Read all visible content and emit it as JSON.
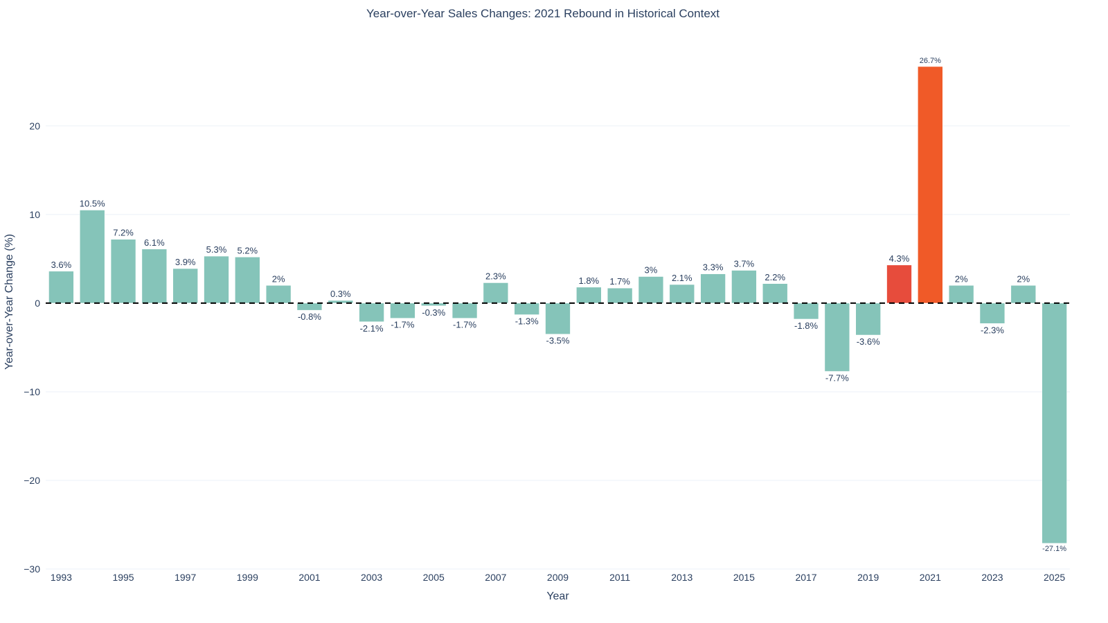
{
  "chart_data": {
    "type": "bar",
    "title": "Year-over-Year Sales Changes: 2021 Rebound in Historical Context",
    "xlabel": "Year",
    "ylabel": "Year-over-Year Change (%)",
    "categories": [
      1993,
      1994,
      1995,
      1996,
      1997,
      1998,
      1999,
      2000,
      2001,
      2002,
      2003,
      2004,
      2005,
      2006,
      2007,
      2008,
      2009,
      2010,
      2011,
      2012,
      2013,
      2014,
      2015,
      2016,
      2017,
      2018,
      2019,
      2020,
      2021,
      2022,
      2023,
      2024,
      2025
    ],
    "values": [
      3.6,
      10.5,
      7.2,
      6.1,
      3.9,
      5.3,
      5.2,
      2,
      -0.8,
      0.3,
      -2.1,
      -1.7,
      -0.3,
      -1.7,
      2.3,
      -1.3,
      -3.5,
      1.8,
      1.7,
      3,
      2.1,
      3.3,
      3.7,
      2.2,
      -1.8,
      -7.7,
      -3.6,
      4.3,
      26.7,
      2,
      -2.3,
      2,
      -27.1
    ],
    "data_labels": [
      "3.6%",
      "10.5%",
      "7.2%",
      "6.1%",
      "3.9%",
      "5.3%",
      "5.2%",
      "2%",
      "-0.8%",
      "0.3%",
      "-2.1%",
      "-1.7%",
      "-0.3%",
      "-1.7%",
      "2.3%",
      "-1.3%",
      "-3.5%",
      "1.8%",
      "1.7%",
      "3%",
      "2.1%",
      "3.3%",
      "3.7%",
      "2.2%",
      "-1.8%",
      "-7.7%",
      "-3.6%",
      "4.3%",
      "26.7%",
      "2%",
      "-2.3%",
      "2%",
      "-27.1%"
    ],
    "xticks": [
      "1993",
      "1995",
      "1997",
      "1999",
      "2001",
      "2003",
      "2005",
      "2007",
      "2009",
      "2011",
      "2013",
      "2015",
      "2017",
      "2019",
      "2021",
      "2023",
      "2025"
    ],
    "yticks": [
      "−30",
      "−20",
      "−10",
      "0",
      "10",
      "20"
    ],
    "ytick_values": [
      -30,
      -20,
      -10,
      0,
      10,
      20
    ],
    "ylim": [
      -30,
      30.3
    ],
    "grid": true,
    "zero_line": "dashed",
    "colors": {
      "default": "#85c4b9",
      "highlight_2020": "#e74c3c",
      "highlight_2021": "#f05a28",
      "text": "#2a3f5f",
      "grid": "#ebf0f8"
    },
    "bar_colors": {
      "2020": "#e74c3c",
      "2021": "#f05a28"
    }
  }
}
